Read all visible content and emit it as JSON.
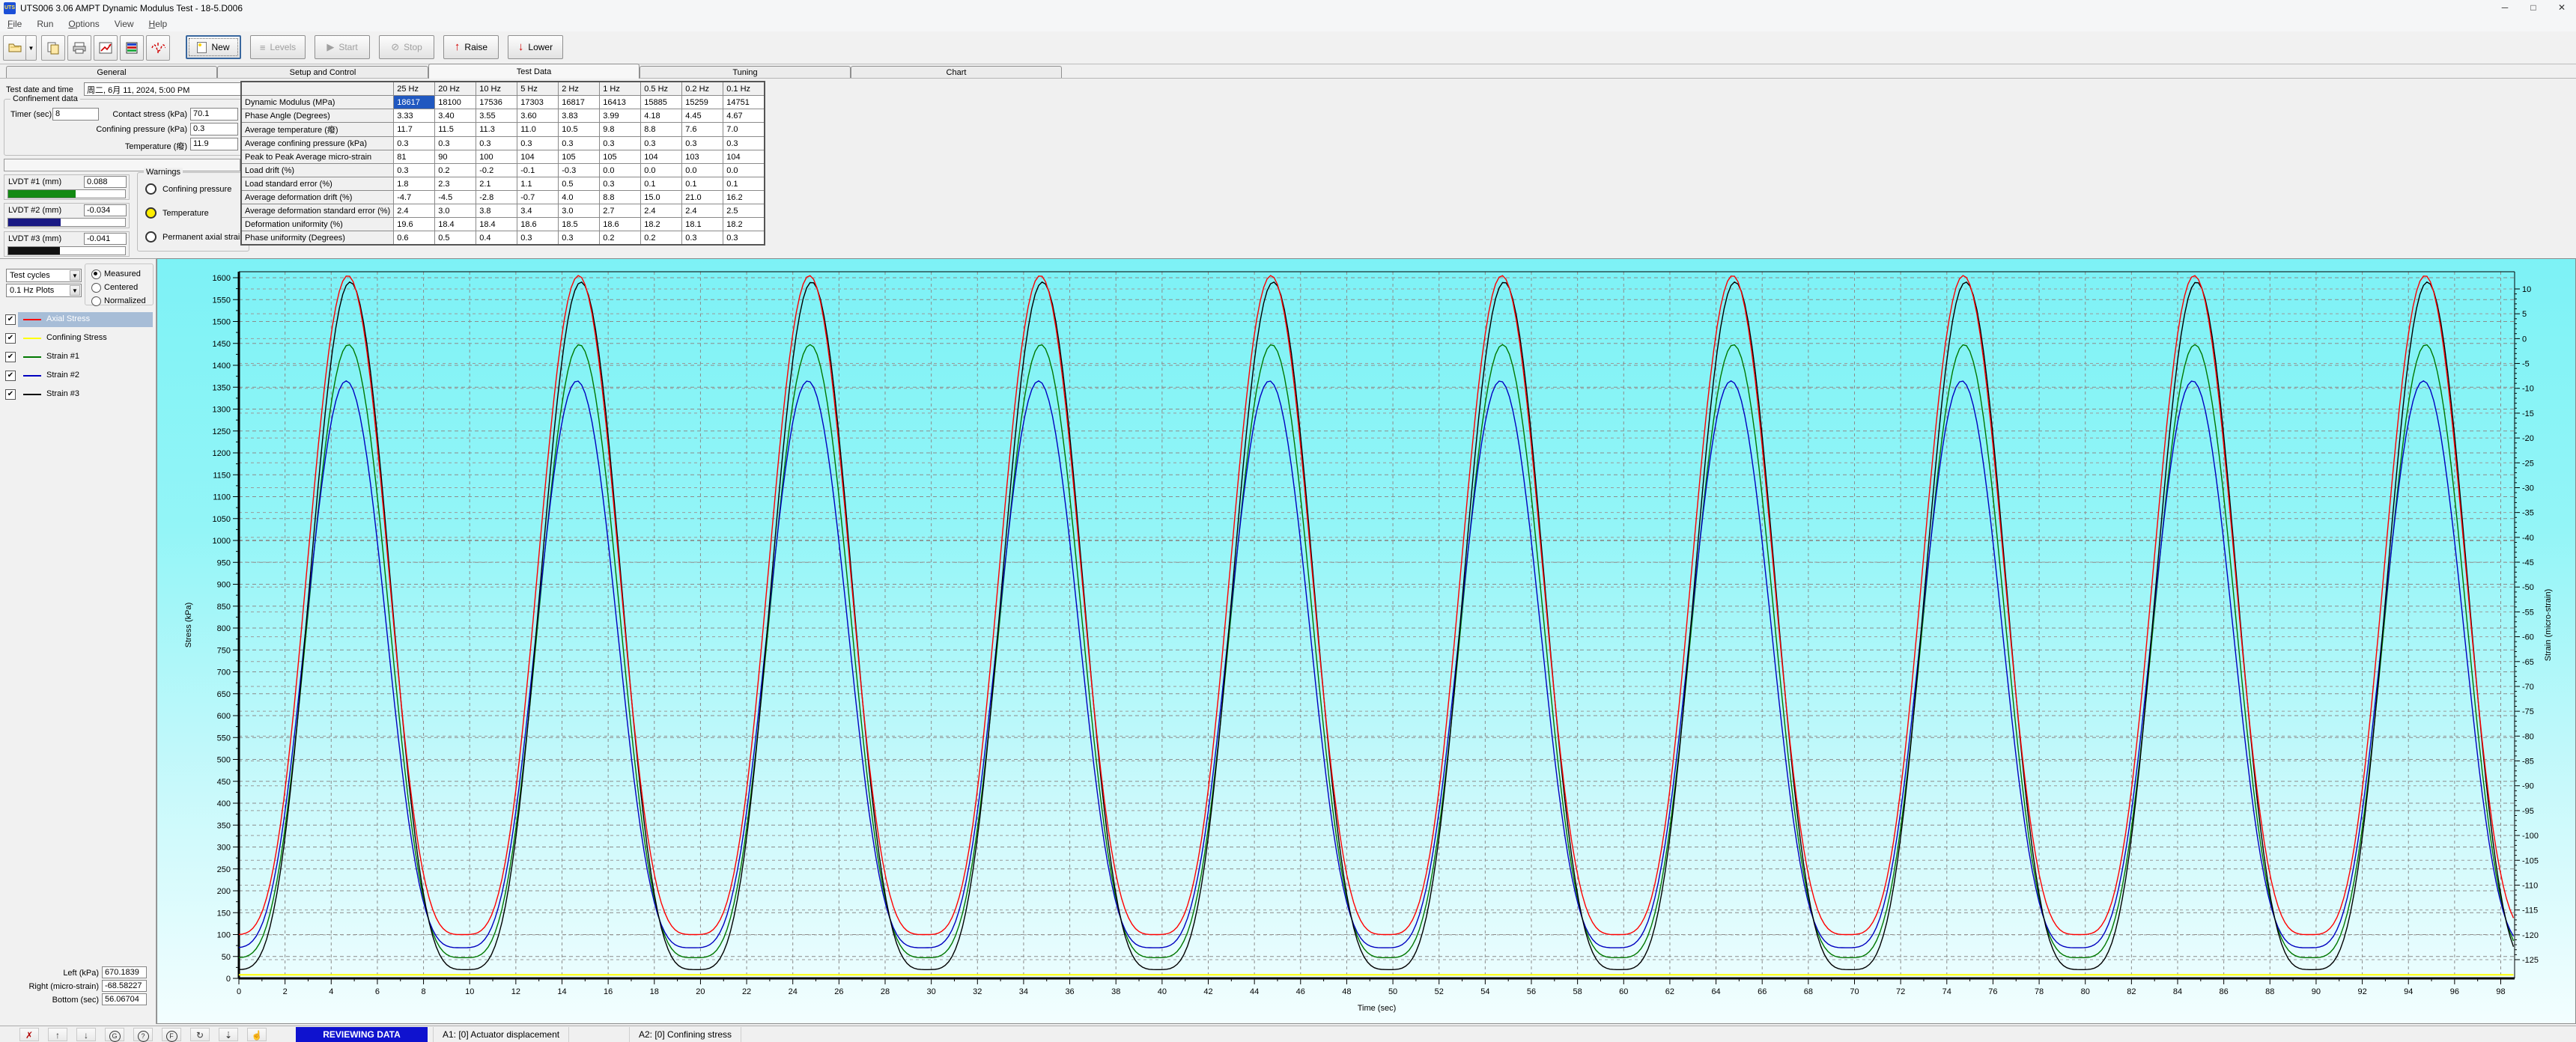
{
  "window": {
    "title": "UTS006 3.06 AMPT Dynamic Modulus Test - 18-5.D006",
    "icon_text": "UTS",
    "controls": [
      {
        "name": "minimize",
        "glyph": "─"
      },
      {
        "name": "maximize",
        "glyph": "□"
      },
      {
        "name": "close",
        "glyph": "✕"
      }
    ]
  },
  "menu": {
    "items": [
      {
        "label": "File",
        "accel": "F"
      },
      {
        "label": "Run",
        "accel": ""
      },
      {
        "label": "Options",
        "accel": "O"
      },
      {
        "label": "View",
        "accel": ""
      },
      {
        "label": "Help",
        "accel": "H"
      }
    ]
  },
  "toolbar": {
    "icons": [
      {
        "name": "open-test-icon"
      },
      {
        "name": "open-dropdown-icon"
      },
      {
        "name": "copy-data-icon"
      },
      {
        "name": "print-icon"
      },
      {
        "name": "export-chart-icon"
      },
      {
        "name": "levels-grid-icon"
      },
      {
        "name": "tuning-wave-icon"
      }
    ],
    "buttons": [
      {
        "label": "New",
        "icon": "new-page",
        "enabled": true,
        "default": true
      },
      {
        "label": "Levels",
        "icon": "levels",
        "enabled": false
      },
      {
        "label": "Start",
        "icon": "start",
        "enabled": false
      },
      {
        "label": "Stop",
        "icon": "stop",
        "enabled": false
      },
      {
        "label": "Raise",
        "icon": "raise",
        "enabled": true
      },
      {
        "label": "Lower",
        "icon": "lower",
        "enabled": true
      }
    ]
  },
  "tabs": {
    "items": [
      "General",
      "Setup and Control",
      "Test Data",
      "Tuning",
      "Chart"
    ],
    "active": "Test Data"
  },
  "test_info": {
    "date_label": "Test date and time",
    "date_value": "周二, 6月 11, 2024, 5:00 PM"
  },
  "confinement": {
    "group_label": "Confinement data",
    "timer_label": "Timer (sec)",
    "timer_value": "8",
    "contact_label": "Contact stress (kPa)",
    "contact_value": "70.1",
    "confining_label": "Confining pressure (kPa)",
    "confining_value": "0.3",
    "temp_label": "Temperature (癈)",
    "temp_value": "11.9"
  },
  "lvdt": {
    "items": [
      {
        "label": "LVDT #1 (mm)",
        "value": "0.088",
        "bar_color": "#128a12",
        "bar_pct": 58
      },
      {
        "label": "LVDT #2 (mm)",
        "value": "-0.034",
        "bar_color": "#191984",
        "bar_pct": 45
      },
      {
        "label": "LVDT #3 (mm)",
        "value": "-0.041",
        "bar_color": "#111111",
        "bar_pct": 44
      }
    ]
  },
  "warnings": {
    "group_label": "Warnings",
    "items": [
      {
        "label": "Confining pressure",
        "state": "off",
        "color": "#ffffff"
      },
      {
        "label": "Temperature",
        "state": "on",
        "color": "#ffee00"
      },
      {
        "label": "Permanent axial strain",
        "state": "off",
        "color": "#ffffff"
      }
    ]
  },
  "table": {
    "columns": [
      "",
      "25 Hz",
      "20 Hz",
      "10 Hz",
      "5 Hz",
      "2 Hz",
      "1 Hz",
      "0.5 Hz",
      "0.2 Hz",
      "0.1 Hz"
    ],
    "rows": [
      {
        "label": "Dynamic Modulus (MPa)",
        "values": [
          "18617",
          "18100",
          "17536",
          "17303",
          "16817",
          "16413",
          "15885",
          "15259",
          "14751"
        ],
        "highlight_col": 0
      },
      {
        "label": "Phase Angle (Degrees)",
        "values": [
          "3.33",
          "3.40",
          "3.55",
          "3.60",
          "3.83",
          "3.99",
          "4.18",
          "4.45",
          "4.67"
        ]
      },
      {
        "label": "Average temperature  (癈)",
        "values": [
          "11.7",
          "11.5",
          "11.3",
          "11.0",
          "10.5",
          "9.8",
          "8.8",
          "7.6",
          "7.0"
        ]
      },
      {
        "label": "Average confining pressure  (kPa)",
        "values": [
          "0.3",
          "0.3",
          "0.3",
          "0.3",
          "0.3",
          "0.3",
          "0.3",
          "0.3",
          "0.3"
        ]
      },
      {
        "label": "Peak to Peak Average micro-strain",
        "values": [
          "81",
          "90",
          "100",
          "104",
          "105",
          "105",
          "104",
          "103",
          "104"
        ]
      },
      {
        "label": "Load drift (%)",
        "values": [
          "0.3",
          "0.2",
          "-0.2",
          "-0.1",
          "-0.3",
          "0.0",
          "0.0",
          "0.0",
          "0.0"
        ]
      },
      {
        "label": "Load standard error (%)",
        "values": [
          "1.8",
          "2.3",
          "2.1",
          "1.1",
          "0.5",
          "0.3",
          "0.1",
          "0.1",
          "0.1"
        ]
      },
      {
        "label": "Average deformation drift (%)",
        "values": [
          "-4.7",
          "-4.5",
          "-2.8",
          "-0.7",
          "4.0",
          "8.8",
          "15.0",
          "21.0",
          "16.2"
        ]
      },
      {
        "label": "Average deformation standard error (%)",
        "values": [
          "2.4",
          "3.0",
          "3.8",
          "3.4",
          "3.0",
          "2.7",
          "2.4",
          "2.4",
          "2.5"
        ]
      },
      {
        "label": "Deformation uniformity (%)",
        "values": [
          "19.6",
          "18.4",
          "18.4",
          "18.6",
          "18.5",
          "18.6",
          "18.2",
          "18.1",
          "18.2"
        ]
      },
      {
        "label": "Phase uniformity (Degrees)",
        "values": [
          "0.6",
          "0.5",
          "0.4",
          "0.3",
          "0.3",
          "0.2",
          "0.2",
          "0.3",
          "0.3"
        ]
      }
    ]
  },
  "chart_panel": {
    "dropdown1": "Test cycles",
    "dropdown2": "0.1 Hz Plots",
    "radios": [
      {
        "label": "Measured",
        "selected": true
      },
      {
        "label": "Centered",
        "selected": false
      },
      {
        "label": "Normalized",
        "selected": false
      }
    ],
    "series_toggles": [
      {
        "label": "Axial Stress",
        "color": "#ff0000",
        "checked": true,
        "selected": true
      },
      {
        "label": "Confining Stress",
        "color": "#ffff00",
        "checked": true,
        "selected": false
      },
      {
        "label": "Strain #1",
        "color": "#007800",
        "checked": true,
        "selected": false
      },
      {
        "label": "Strain #2",
        "color": "#0000c0",
        "checked": true,
        "selected": false
      },
      {
        "label": "Strain #3",
        "color": "#000000",
        "checked": true,
        "selected": false
      }
    ],
    "readouts": [
      {
        "label": "Left (kPa)",
        "value": "670.1839"
      },
      {
        "label": "Right (micro-strain)",
        "value": "-68.58227"
      },
      {
        "label": "Bottom (sec)",
        "value": "56.06704"
      }
    ]
  },
  "chart_data": {
    "type": "line",
    "xlabel": "Time (sec)",
    "x_range": [
      0,
      98.6
    ],
    "x_label_max": 98,
    "x_tick_step": 2,
    "x_minor_step": 1,
    "left_axis": {
      "label": "Stress (kPa)",
      "min": 0,
      "max": 1600,
      "tick_step": 50,
      "minor_step": 25
    },
    "right_axis": {
      "label": "Strain (micro-strain)",
      "tick_min": -125,
      "tick_max": 10,
      "tick_step": 5,
      "minor_step": 1
    },
    "grid": "dashed",
    "legend_position": "left-panel",
    "series": [
      {
        "name": "Axial Stress",
        "color": "#ff0000",
        "axis": "left",
        "period": 10,
        "peak_t": 4.72,
        "sharpness": 1.8,
        "min": 100,
        "max": 1605
      },
      {
        "name": "Confining Stress",
        "color": "#ffff00",
        "axis": "left",
        "period": 10,
        "peak_t": 0,
        "sharpness": 1,
        "min": 8,
        "max": 8
      },
      {
        "name": "Strain #1",
        "color": "#007800",
        "axis": "right",
        "period": 10,
        "peak_t": 4.75,
        "sharpness": 1.8,
        "min": -124.6,
        "max": -1.2
      },
      {
        "name": "Strain #2",
        "color": "#0000c0",
        "axis": "right",
        "period": 10,
        "peak_t": 4.65,
        "sharpness": 1.8,
        "min": -122.6,
        "max": -8.5
      },
      {
        "name": "Strain #3",
        "color": "#000000",
        "axis": "right",
        "period": 10,
        "peak_t": 4.82,
        "sharpness": 1.8,
        "min": -127.0,
        "max": 11.4
      }
    ]
  },
  "status_bar": {
    "mode": "REVIEWING DATA",
    "icons": [
      {
        "name": "discard-data-icon",
        "glyph": "✗",
        "color": "#b00000",
        "circle": false
      },
      {
        "name": "raise-actuator-icon",
        "glyph": "↑",
        "color": "#333333",
        "circle": false
      },
      {
        "name": "lower-actuator-icon",
        "glyph": "↓",
        "color": "#333333",
        "circle": false
      },
      {
        "name": "gain-icon",
        "glyph": "G",
        "color": "#333333",
        "circle": true
      },
      {
        "name": "help-status-icon",
        "glyph": "?",
        "color": "#333333",
        "circle": true
      },
      {
        "name": "function-icon",
        "glyph": "F",
        "color": "#333333",
        "circle": true
      },
      {
        "name": "rotate-icon",
        "glyph": "↻",
        "color": "#333333",
        "circle": false
      },
      {
        "name": "temperature-probe-icon",
        "glyph": "⇣",
        "color": "#333333",
        "circle": false
      },
      {
        "name": "hand-pause-icon",
        "glyph": "☝",
        "color": "#333333",
        "circle": false
      }
    ],
    "items": [
      "A1: [0] Actuator displacement",
      "A2: [0] Confining stress"
    ]
  }
}
